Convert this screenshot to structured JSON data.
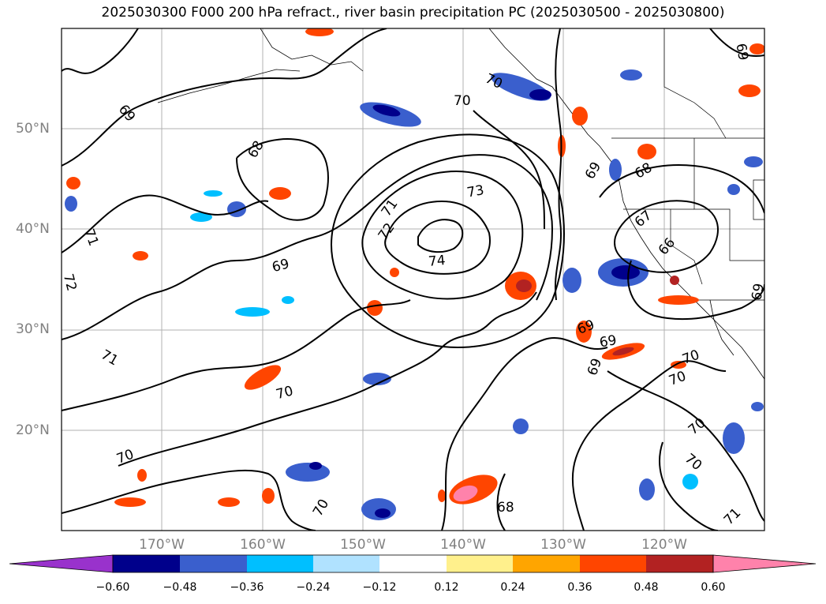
{
  "title": "2025030300 F000 200 hPa refract., river basin precipitation PC (2025030500 - 2025030800)",
  "lat_labels": [
    "50°N",
    "40°N",
    "30°N",
    "20°N"
  ],
  "lon_labels": [
    "170°W",
    "160°W",
    "150°W",
    "140°W",
    "130°W",
    "120°W"
  ],
  "contour_labels": [
    "69",
    "68",
    "70",
    "70",
    "71",
    "72",
    "73",
    "74",
    "69",
    "71",
    "72",
    "71",
    "70",
    "70",
    "69",
    "68",
    "67",
    "66",
    "69",
    "69",
    "69",
    "69",
    "70",
    "70",
    "70",
    "70",
    "68",
    "70",
    "71",
    "69"
  ],
  "colorbar": {
    "ticks": [
      "−0.60",
      "−0.48",
      "−0.36",
      "−0.24",
      "−0.12",
      "0.12",
      "0.24",
      "0.36",
      "0.48",
      "0.60"
    ],
    "colors": [
      "#9932cc",
      "#00008b",
      "#3a5fcd",
      "#00bfff",
      "#b0e2ff",
      "#ffffff",
      "#fff08c",
      "#ffa500",
      "#ff4500",
      "#b22222",
      "#ff82ab"
    ]
  }
}
